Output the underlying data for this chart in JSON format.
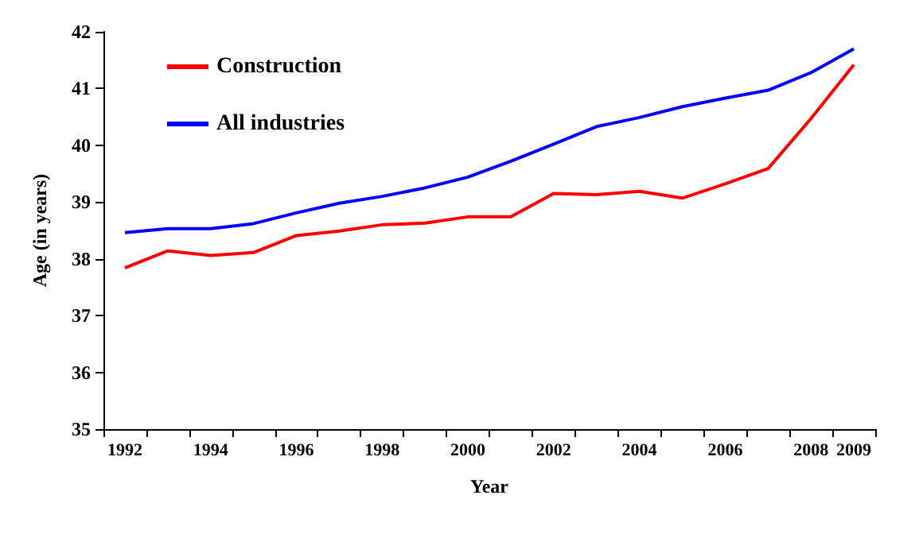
{
  "chart_data": {
    "type": "line",
    "xlabel": "Year",
    "ylabel": "Age (in years)",
    "categories": [
      "1992",
      null,
      "1994",
      null,
      "1996",
      null,
      "1998",
      null,
      "2000",
      null,
      "2002",
      null,
      "2004",
      null,
      "2006",
      null,
      "2008",
      "2009"
    ],
    "series": [
      {
        "name": "Construction",
        "color": "#ff0000",
        "values": [
          37.84,
          38.14,
          38.06,
          38.11,
          38.41,
          38.49,
          38.6,
          38.63,
          38.74,
          38.74,
          39.15,
          39.13,
          39.19,
          39.07,
          39.32,
          39.59,
          40.47,
          41.42
        ]
      },
      {
        "name": "All industries",
        "color": "#0000ff",
        "values": [
          38.46,
          38.53,
          38.53,
          38.62,
          38.81,
          38.98,
          39.1,
          39.25,
          39.44,
          39.72,
          40.02,
          40.33,
          40.49,
          40.68,
          40.83,
          40.97,
          41.28,
          41.7
        ]
      }
    ],
    "ylim": [
      35,
      42
    ],
    "yticks": [
      35,
      36,
      37,
      38,
      39,
      40,
      41,
      42
    ],
    "grid": false,
    "legend": "top left",
    "marker": "none",
    "line_style": "solid"
  }
}
